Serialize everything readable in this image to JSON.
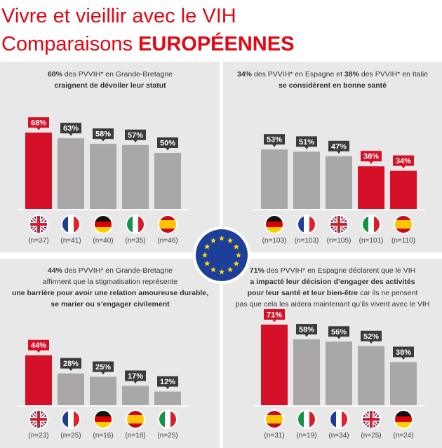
{
  "title_lines": [
    [
      {
        "text": "Vivre et vieillir avec le VIH",
        "bold": false
      }
    ],
    [
      {
        "text": "Comparaisons ",
        "bold": false
      },
      {
        "text": "EUROPÉENNES",
        "bold": true
      }
    ]
  ],
  "chart_data": [
    {
      "type": "bar",
      "caption": [
        [
          {
            "text": "68%",
            "bold": true
          },
          {
            "text": " des PVVIH* en Grande-Bretagne",
            "bold": false
          }
        ],
        [
          {
            "text": "craignent de dévoiler leur statut",
            "bold": true
          }
        ]
      ],
      "categories": [
        "(n=37)",
        "(n=41)",
        "(n=40)",
        "(n=35)",
        "(n=46)"
      ],
      "values": [
        68,
        63,
        58,
        57,
        50
      ],
      "value_labels": [
        "68%",
        "63%",
        "58%",
        "57%",
        "50%"
      ],
      "colors": [
        "#d7102a",
        "#a9a7a7",
        "#a9a7a7",
        "#a9a7a7",
        "#a9a7a7"
      ],
      "label_colors": [
        "#d7102a",
        "#3b3b3b",
        "#3b3b3b",
        "#3b3b3b",
        "#3b3b3b"
      ]
    },
    {
      "type": "bar",
      "caption": [
        [
          {
            "text": "34%",
            "bold": true
          },
          {
            "text": " des PVVIH* en Espagne et ",
            "bold": false
          },
          {
            "text": "38%",
            "bold": true
          },
          {
            "text": " des PVVIH* en Italie",
            "bold": false
          }
        ],
        [
          {
            "text": "se considèrent en bonne santé",
            "bold": true
          }
        ]
      ],
      "categories": [
        "(n=103)",
        "(n=103)",
        "(n=105)",
        "(n=101)",
        "(n=110)"
      ],
      "values": [
        53,
        51,
        47,
        38,
        34
      ],
      "value_labels": [
        "53%",
        "51%",
        "47%",
        "38%",
        "34%"
      ],
      "colors": [
        "#a9a7a7",
        "#a9a7a7",
        "#a9a7a7",
        "#d7102a",
        "#d7102a"
      ],
      "label_colors": [
        "#3b3b3b",
        "#3b3b3b",
        "#3b3b3b",
        "#d7102a",
        "#d7102a"
      ]
    },
    {
      "type": "bar",
      "caption": [
        [
          {
            "text": "44%",
            "bold": true
          },
          {
            "text": " des PVVIH* en Grande-Bretagne",
            "bold": false
          }
        ],
        [
          {
            "text": "affirment que la stigmatisation représente",
            "bold": false
          }
        ],
        [
          {
            "text": "une barrière pour avoir une relation amoureuse durable,",
            "bold": true
          }
        ],
        [
          {
            "text": "se marier ou s’engager civilement",
            "bold": true
          }
        ]
      ],
      "categories": [
        "(n=23)",
        "(n=25)",
        "(n=16)",
        "(n=18)",
        "(n=25)"
      ],
      "values": [
        44,
        28,
        25,
        17,
        12
      ],
      "value_labels": [
        "44%",
        "28%",
        "25%",
        "17%",
        "12%"
      ],
      "colors": [
        "#d7102a",
        "#a9a7a7",
        "#a9a7a7",
        "#a9a7a7",
        "#a9a7a7"
      ],
      "label_colors": [
        "#d7102a",
        "#3b3b3b",
        "#3b3b3b",
        "#3b3b3b",
        "#3b3b3b"
      ]
    },
    {
      "type": "bar",
      "caption": [
        [
          {
            "text": "71%",
            "bold": true
          },
          {
            "text": " des PVVIH* en Espagne déclarent que le VIH",
            "bold": false
          }
        ],
        [
          {
            "text": "a impacté leur décision d’engager des activités",
            "bold": true
          }
        ],
        [
          {
            "text": "pour leur santé et leur bien-être",
            "bold": true
          },
          {
            "text": " car ils ne pensent",
            "bold": false
          }
        ],
        [
          {
            "text": "pas que cela les aidera maintenant qu’ils vivent avec le VIH",
            "bold": false
          }
        ]
      ],
      "categories": [
        "(n=31)",
        "(n=19)",
        "(n=34)",
        "(n=25)",
        "(n=24)"
      ],
      "values": [
        71,
        58,
        56,
        52,
        38
      ],
      "value_labels": [
        "71%",
        "58%",
        "56%",
        "52%",
        "38%"
      ],
      "colors": [
        "#d7102a",
        "#a9a7a7",
        "#a9a7a7",
        "#a9a7a7",
        "#a9a7a7"
      ],
      "label_colors": [
        "#d7102a",
        "#3b3b3b",
        "#3b3b3b",
        "#3b3b3b",
        "#3b3b3b"
      ]
    }
  ]
}
